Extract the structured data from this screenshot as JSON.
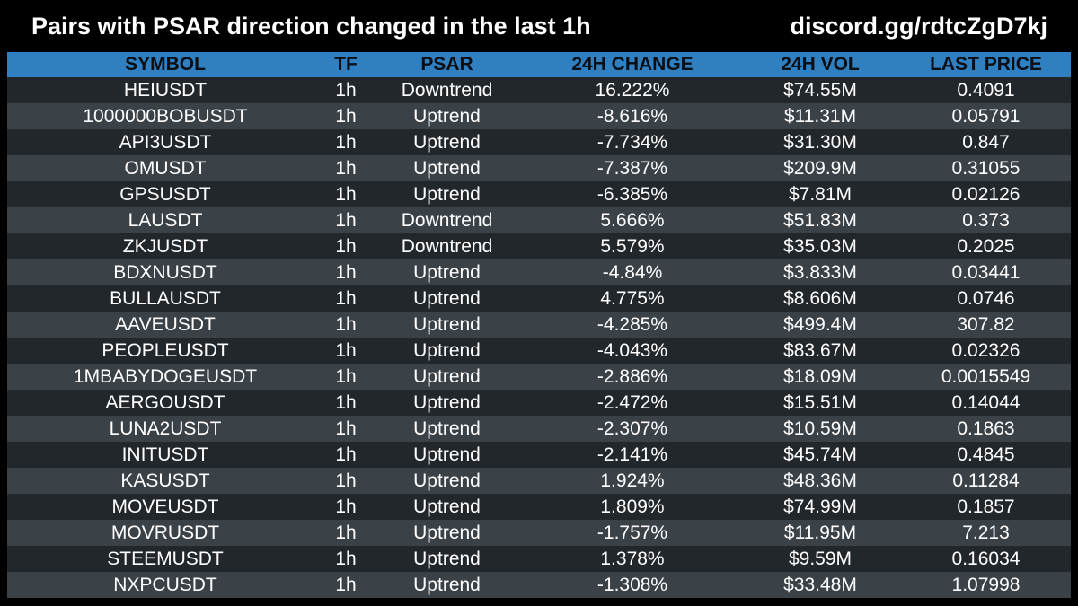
{
  "header": {
    "title": "Pairs with PSAR direction changed in the last 1h",
    "invite": "discord.gg/rdtcZgD7kj"
  },
  "colors": {
    "background": "#000000",
    "header_row": "#2f7fc1",
    "row_dark": "#22272c",
    "row_light": "#3a4147",
    "text": "#ffffff"
  },
  "table": {
    "columns": [
      "SYMBOL",
      "TF",
      "PSAR",
      "24H CHANGE",
      "24H VOL",
      "LAST PRICE"
    ],
    "rows": [
      [
        "HEIUSDT",
        "1h",
        "Downtrend",
        "16.222%",
        "$74.55M",
        "0.4091"
      ],
      [
        "1000000BOBUSDT",
        "1h",
        "Uptrend",
        "-8.616%",
        "$11.31M",
        "0.05791"
      ],
      [
        "API3USDT",
        "1h",
        "Uptrend",
        "-7.734%",
        "$31.30M",
        "0.847"
      ],
      [
        "OMUSDT",
        "1h",
        "Uptrend",
        "-7.387%",
        "$209.9M",
        "0.31055"
      ],
      [
        "GPSUSDT",
        "1h",
        "Uptrend",
        "-6.385%",
        "$7.81M",
        "0.02126"
      ],
      [
        "LAUSDT",
        "1h",
        "Downtrend",
        "5.666%",
        "$51.83M",
        "0.373"
      ],
      [
        "ZKJUSDT",
        "1h",
        "Downtrend",
        "5.579%",
        "$35.03M",
        "0.2025"
      ],
      [
        "BDXNUSDT",
        "1h",
        "Uptrend",
        "-4.84%",
        "$3.833M",
        "0.03441"
      ],
      [
        "BULLAUSDT",
        "1h",
        "Uptrend",
        "4.775%",
        "$8.606M",
        "0.0746"
      ],
      [
        "AAVEUSDT",
        "1h",
        "Uptrend",
        "-4.285%",
        "$499.4M",
        "307.82"
      ],
      [
        "PEOPLEUSDT",
        "1h",
        "Uptrend",
        "-4.043%",
        "$83.67M",
        "0.02326"
      ],
      [
        "1MBABYDOGEUSDT",
        "1h",
        "Uptrend",
        "-2.886%",
        "$18.09M",
        "0.0015549"
      ],
      [
        "AERGOUSDT",
        "1h",
        "Uptrend",
        "-2.472%",
        "$15.51M",
        "0.14044"
      ],
      [
        "LUNA2USDT",
        "1h",
        "Uptrend",
        "-2.307%",
        "$10.59M",
        "0.1863"
      ],
      [
        "INITUSDT",
        "1h",
        "Uptrend",
        "-2.141%",
        "$45.74M",
        "0.4845"
      ],
      [
        "KASUSDT",
        "1h",
        "Uptrend",
        "1.924%",
        "$48.36M",
        "0.11284"
      ],
      [
        "MOVEUSDT",
        "1h",
        "Uptrend",
        "1.809%",
        "$74.99M",
        "0.1857"
      ],
      [
        "MOVRUSDT",
        "1h",
        "Uptrend",
        "-1.757%",
        "$11.95M",
        "7.213"
      ],
      [
        "STEEMUSDT",
        "1h",
        "Uptrend",
        "1.378%",
        "$9.59M",
        "0.16034"
      ],
      [
        "NXPCUSDT",
        "1h",
        "Uptrend",
        "-1.308%",
        "$33.48M",
        "1.07998"
      ]
    ]
  }
}
